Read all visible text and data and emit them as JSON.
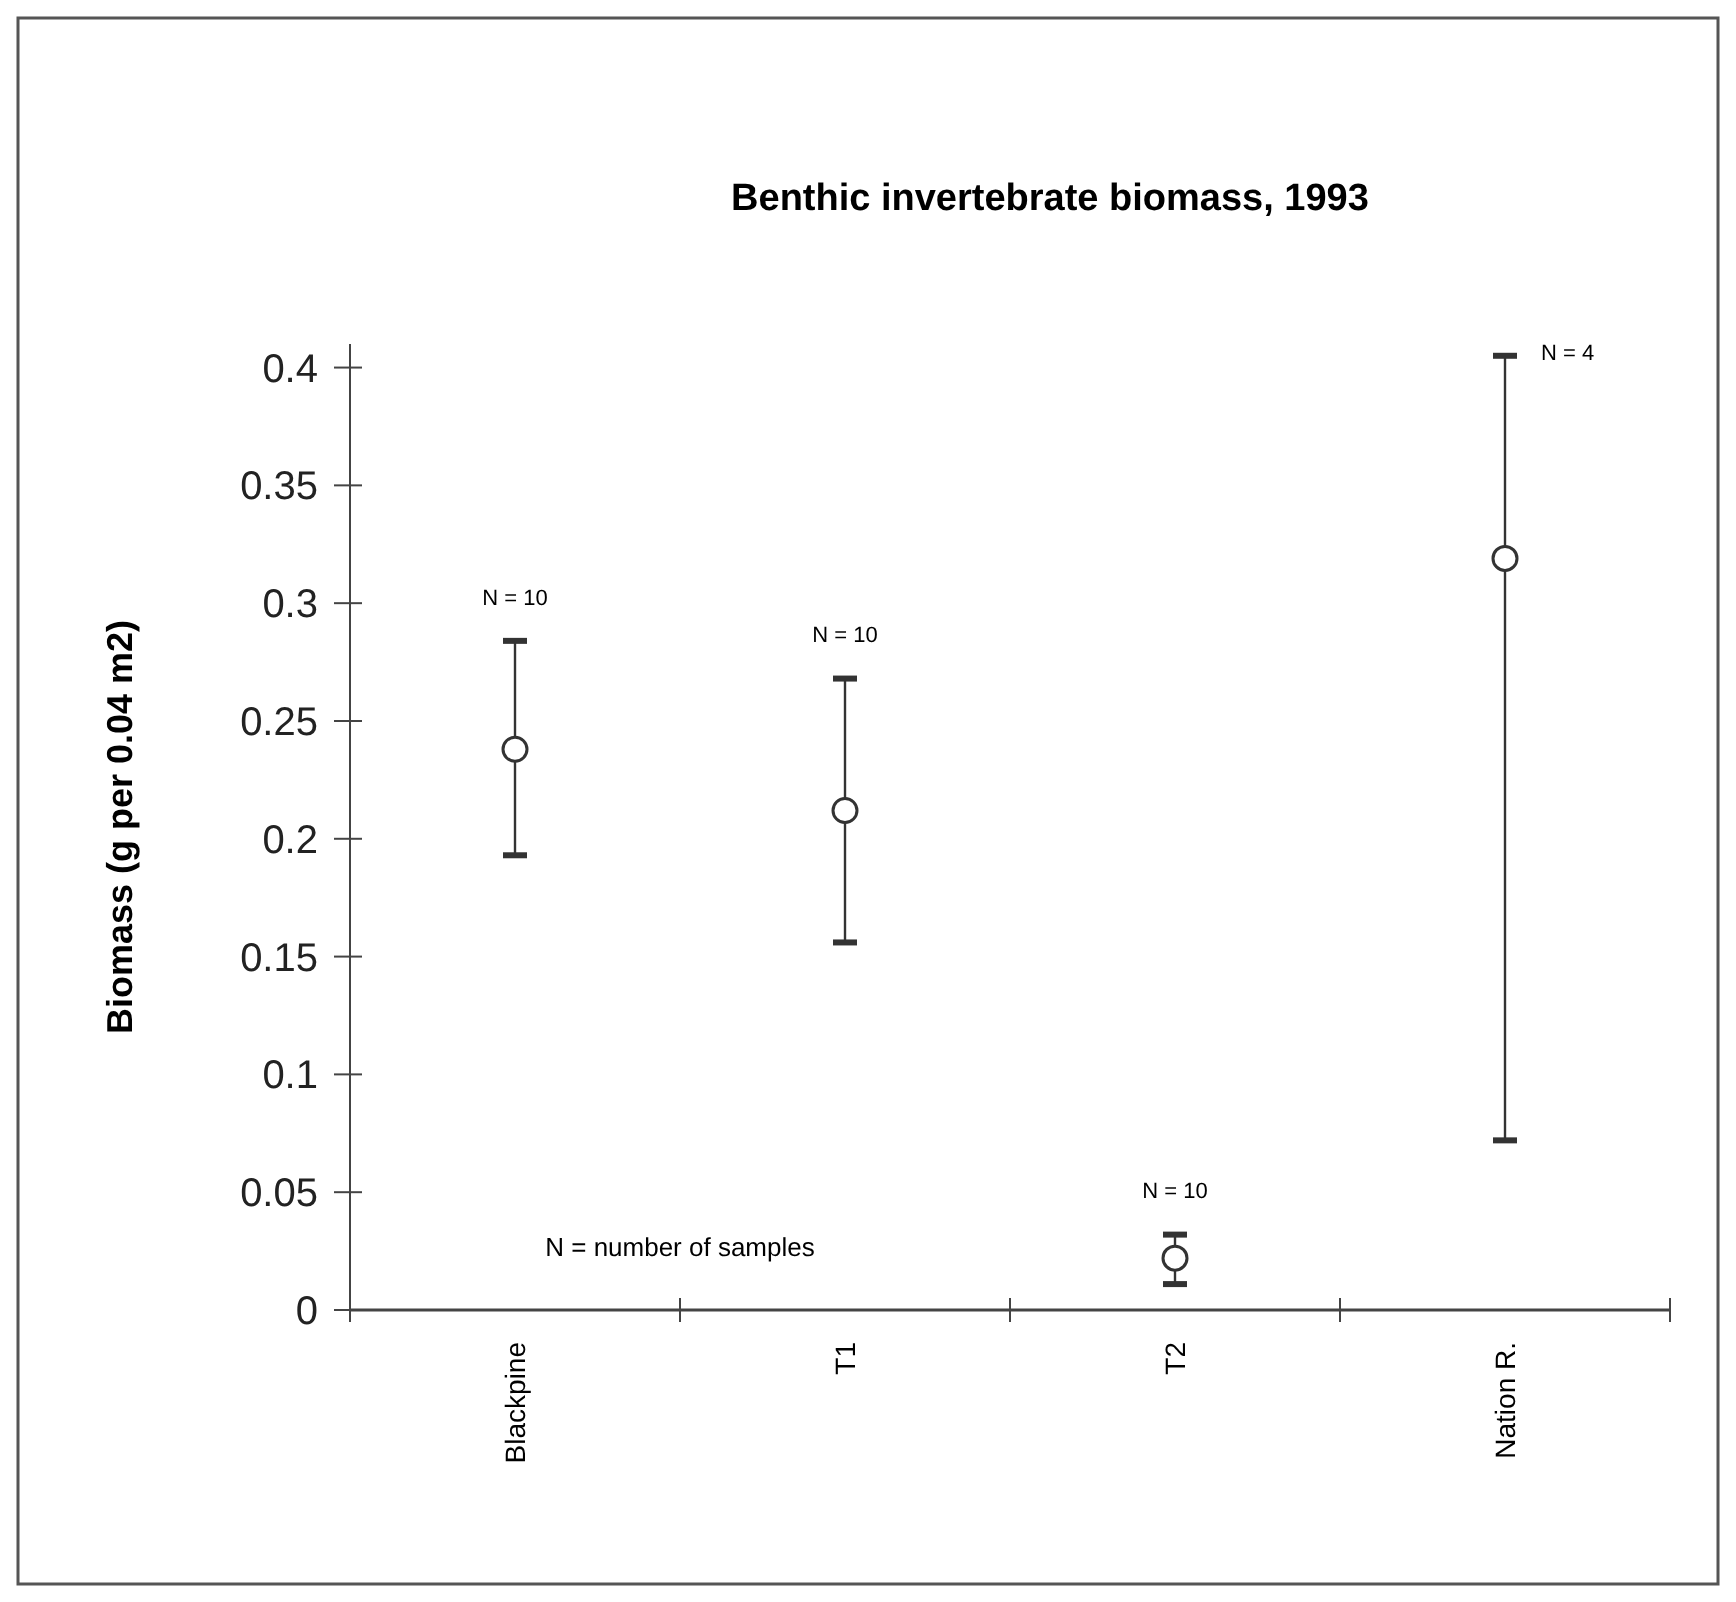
{
  "chart_data": {
    "type": "scatter",
    "title": "Benthic invertebrate biomass, 1993",
    "ylabel": "Biomass (g per 0.04 m2)",
    "categories": [
      "Blackpine",
      "T1",
      "T2",
      "Nation R."
    ],
    "series": [
      {
        "color": "#333333",
        "values": [
          0.238,
          0.212,
          0.022,
          0.319
        ],
        "errors": [
          [
            0.193,
            0.284
          ],
          [
            0.156,
            0.268
          ],
          [
            0.011,
            0.032
          ],
          [
            0.072,
            0.405
          ]
        ]
      }
    ],
    "ylim": [
      0,
      0.41
    ],
    "yticks": [
      0,
      0.05,
      0.1,
      0.15,
      0.2,
      0.25,
      0.3,
      0.35,
      0.4
    ],
    "marker": "circle",
    "grid": false,
    "annotations": [
      "N = 10",
      "N = 10",
      "N = 10",
      "N = 4",
      "N = number of samples"
    ]
  }
}
